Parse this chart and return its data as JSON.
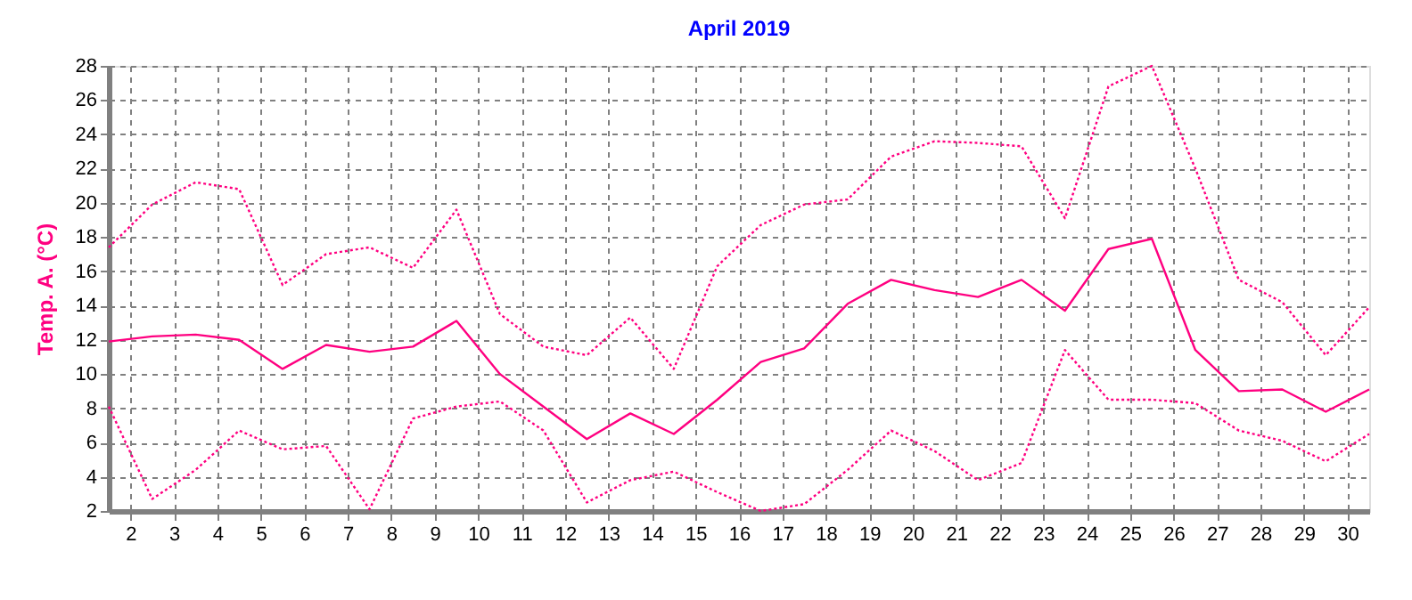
{
  "chart_data": {
    "type": "line",
    "title": "April 2019",
    "ylabel": "Temp. A. (°C)",
    "x": [
      1.5,
      2.5,
      3.5,
      4.5,
      5.5,
      6.5,
      7.5,
      8.5,
      9.5,
      10.5,
      11.5,
      12.5,
      13.5,
      14.5,
      15.5,
      16.5,
      17.5,
      18.5,
      19.5,
      20.5,
      21.5,
      22.5,
      23.5,
      24.5,
      25.5,
      26.5,
      27.5,
      28.5,
      29.5,
      30.5
    ],
    "series": [
      {
        "color": "#ff0080",
        "line_style": "dotted",
        "values": [
          17.4,
          19.9,
          21.2,
          20.8,
          15.2,
          17.0,
          17.4,
          16.2,
          19.6,
          13.5,
          11.6,
          11.1,
          13.3,
          10.3,
          16.3,
          18.7,
          19.9,
          20.2,
          22.7,
          23.6,
          23.5,
          23.3,
          19.1,
          26.8,
          28.0,
          22.0,
          15.5,
          14.2,
          11.1,
          13.9
        ]
      },
      {
        "color": "#ff0080",
        "line_style": "solid",
        "values": [
          11.9,
          12.2,
          12.3,
          12.0,
          10.3,
          11.7,
          11.3,
          11.6,
          13.1,
          10.0,
          8.1,
          6.2,
          7.7,
          6.5,
          8.5,
          10.7,
          11.5,
          14.1,
          15.5,
          14.9,
          14.5,
          15.5,
          13.7,
          17.3,
          17.9,
          11.4,
          9.0,
          9.1,
          7.8,
          9.1
        ]
      },
      {
        "color": "#ff0080",
        "line_style": "dotted",
        "values": [
          8.1,
          2.7,
          4.4,
          6.7,
          5.6,
          5.8,
          2.1,
          7.4,
          8.1,
          8.4,
          6.7,
          2.5,
          3.8,
          4.3,
          3.1,
          2.0,
          2.4,
          4.4,
          6.7,
          5.5,
          3.8,
          4.8,
          11.4,
          8.5,
          8.5,
          8.3,
          6.7,
          6.1,
          4.9,
          6.5
        ]
      }
    ],
    "xlim": [
      1.5,
      30.5
    ],
    "xticks": [
      2,
      3,
      4,
      5,
      6,
      7,
      8,
      9,
      10,
      11,
      12,
      13,
      14,
      15,
      16,
      17,
      18,
      19,
      20,
      21,
      22,
      23,
      24,
      25,
      26,
      27,
      28,
      29,
      30
    ],
    "ylim": [
      2,
      28
    ],
    "yticks": [
      2,
      4,
      6,
      8,
      10,
      12,
      14,
      16,
      18,
      20,
      22,
      24,
      26,
      28
    ],
    "grid": true,
    "legend": false,
    "marker": "none"
  }
}
